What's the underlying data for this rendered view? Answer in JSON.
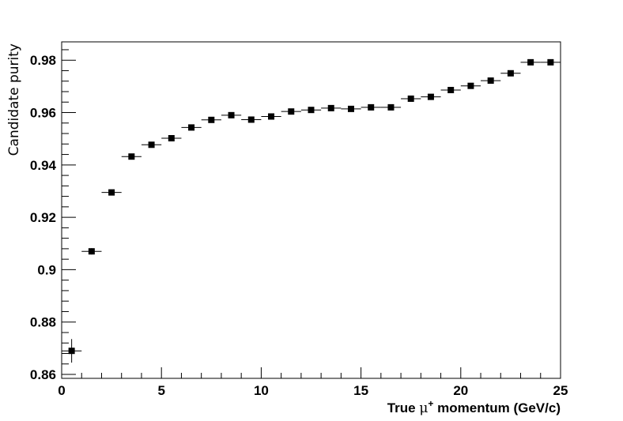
{
  "chart_data": {
    "type": "scatter",
    "title": "",
    "xlabel": "True μ⁺ momentum (GeV/c)",
    "xlabel_parts": {
      "prefix": "True ",
      "symbol": "μ",
      "sup": "+",
      "suffix": " momentum (GeV/c)"
    },
    "ylabel": "Candidate purity",
    "xlim": [
      0,
      25
    ],
    "ylim": [
      0.8585,
      0.987
    ],
    "xticks": [
      0,
      5,
      10,
      15,
      20,
      25
    ],
    "xtick_labels": [
      "0",
      "5",
      "10",
      "15",
      "20",
      "25"
    ],
    "yticks": [
      0.86,
      0.88,
      0.9,
      0.92,
      0.94,
      0.96,
      0.98
    ],
    "ytick_labels": [
      "0.86",
      "0.88",
      "0.9",
      "0.92",
      "0.94",
      "0.96",
      "0.98"
    ],
    "grid": false,
    "legend": "none",
    "marker": "square",
    "marker_color": "#000000",
    "bin_half_width": 0.5,
    "x": [
      0.5,
      1.5,
      2.5,
      3.5,
      4.5,
      5.5,
      6.5,
      7.5,
      8.5,
      9.5,
      10.5,
      11.5,
      12.5,
      13.5,
      14.5,
      15.5,
      16.5,
      17.5,
      18.5,
      19.5,
      20.5,
      21.5,
      22.5,
      23.5,
      24.5
    ],
    "y": [
      0.869,
      0.907,
      0.9295,
      0.9432,
      0.9477,
      0.9502,
      0.9543,
      0.9572,
      0.959,
      0.9573,
      0.9585,
      0.9604,
      0.961,
      0.9617,
      0.9614,
      0.962,
      0.962,
      0.9653,
      0.966,
      0.9686,
      0.9702,
      0.9722,
      0.975,
      0.9792,
      0.9792
    ],
    "y_err": [
      0.0045,
      0.0012,
      0.0008,
      0.0006,
      0.0005,
      0.0005,
      0.0005,
      0.0004,
      0.0004,
      0.0004,
      0.0004,
      0.0004,
      0.0004,
      0.0004,
      0.0004,
      0.0004,
      0.0004,
      0.0004,
      0.0004,
      0.0004,
      0.0004,
      0.0004,
      0.0004,
      0.0004,
      0.0004
    ]
  }
}
